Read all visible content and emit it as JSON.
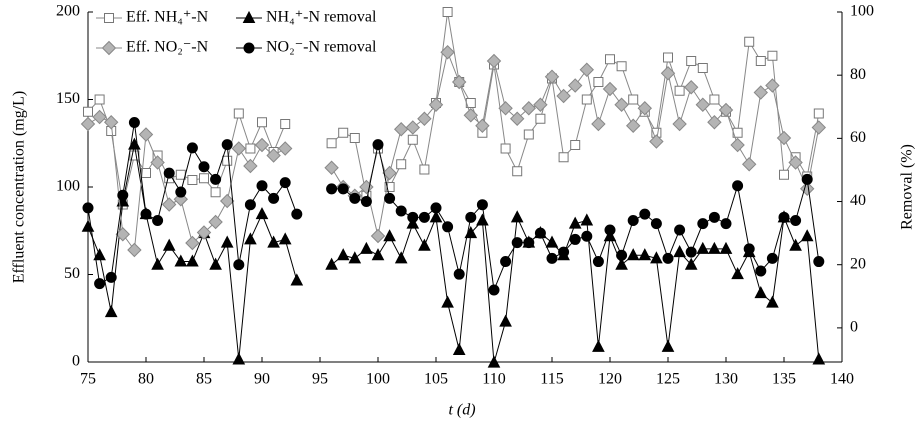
{
  "chart_data": {
    "type": "line",
    "x_label": "t (d)",
    "y_label": "Effluent concentration (mg/L)",
    "y2_label": "Removal (%)",
    "xlim": [
      75,
      140
    ],
    "xticks": [
      75,
      80,
      85,
      90,
      95,
      100,
      105,
      110,
      115,
      120,
      125,
      130,
      135,
      140
    ],
    "ylim": [
      0,
      200
    ],
    "yticks": [
      0,
      50,
      100,
      150,
      200
    ],
    "y2lim": [
      -10.8,
      100
    ],
    "y2ticks": [
      0,
      20,
      40,
      60,
      80,
      100
    ],
    "legend": "top-left",
    "x": [
      75,
      76,
      77,
      78,
      79,
      80,
      81,
      82,
      83,
      84,
      85,
      86,
      87,
      88,
      89,
      90,
      91,
      92,
      93,
      94,
      95,
      96,
      97,
      98,
      99,
      100,
      101,
      102,
      103,
      104,
      105,
      106,
      107,
      108,
      109,
      110,
      111,
      112,
      113,
      114,
      115,
      116,
      117,
      118,
      119,
      120,
      121,
      122,
      123,
      124,
      125,
      126,
      127,
      128,
      129,
      130,
      131,
      132,
      133,
      134,
      135,
      136,
      137,
      138
    ],
    "series": [
      {
        "name": "Eff. NH₄⁺-N",
        "color": "#888888",
        "marker": "square",
        "marker_fill": "#ffffff",
        "marker_stroke": "#777777",
        "values": [
          143,
          150,
          132,
          90,
          118,
          108,
          118,
          105,
          107,
          104,
          105,
          97,
          115,
          142,
          122,
          137,
          120,
          136,
          null,
          null,
          null,
          125,
          131,
          128,
          95,
          122,
          100,
          113,
          127,
          110,
          148,
          200,
          160,
          148,
          131,
          170,
          122,
          109,
          130,
          139,
          162,
          117,
          124,
          150,
          160,
          173,
          169,
          150,
          143,
          131,
          174,
          155,
          172,
          168,
          150,
          143,
          131,
          183,
          172,
          175,
          107,
          117,
          106,
          142
        ]
      },
      {
        "name": "NH₄⁺-N removal",
        "color": "#000000",
        "marker": "triangle",
        "marker_fill": "#000000",
        "marker_stroke": "#000000",
        "axis": "y2",
        "values": [
          32,
          23,
          5,
          40,
          58,
          36,
          20,
          26,
          21,
          21,
          30,
          20,
          27,
          -10,
          28,
          36,
          27,
          28,
          15,
          null,
          null,
          20,
          23,
          22,
          25,
          23,
          29,
          22,
          33,
          26,
          35,
          8,
          -7,
          30,
          34,
          -11,
          2,
          35,
          27,
          30,
          27,
          23,
          33,
          34,
          -6,
          29,
          20,
          23,
          23,
          22,
          -6,
          24,
          20,
          25,
          25,
          25,
          17,
          24,
          11,
          8,
          35,
          26,
          29,
          -10
        ]
      },
      {
        "name": "Eff. NO₂⁻-N",
        "color": "#888888",
        "marker": "diamond",
        "marker_fill": "#b4b4b4",
        "marker_stroke": "#888888",
        "values": [
          136,
          140,
          137,
          73,
          64,
          130,
          114,
          90,
          93,
          68,
          74,
          80,
          92,
          122,
          112,
          124,
          118,
          122,
          null,
          null,
          null,
          111,
          100,
          95,
          100,
          72,
          108,
          133,
          134,
          139,
          147,
          177,
          160,
          141,
          135,
          172,
          145,
          139,
          145,
          147,
          163,
          152,
          158,
          167,
          136,
          156,
          147,
          135,
          145,
          126,
          165,
          136,
          157,
          147,
          137,
          144,
          124,
          113,
          154,
          158,
          128,
          114,
          99,
          134
        ]
      },
      {
        "name": "NO₂⁻-N removal",
        "color": "#000000",
        "marker": "circle",
        "marker_fill": "#000000",
        "marker_stroke": "#000000",
        "axis": "y2",
        "values": [
          38,
          14,
          16,
          42,
          65,
          36,
          34,
          49,
          43,
          57,
          51,
          47,
          58,
          20,
          39,
          45,
          41,
          46,
          36,
          null,
          null,
          44,
          44,
          41,
          40,
          58,
          41,
          37,
          35,
          35,
          38,
          32,
          17,
          35,
          39,
          12,
          21,
          27,
          27,
          30,
          22,
          24,
          28,
          29,
          21,
          31,
          23,
          34,
          36,
          33,
          22,
          31,
          24,
          33,
          35,
          33,
          45,
          25,
          18,
          22,
          35,
          34,
          47,
          21
        ]
      }
    ]
  }
}
